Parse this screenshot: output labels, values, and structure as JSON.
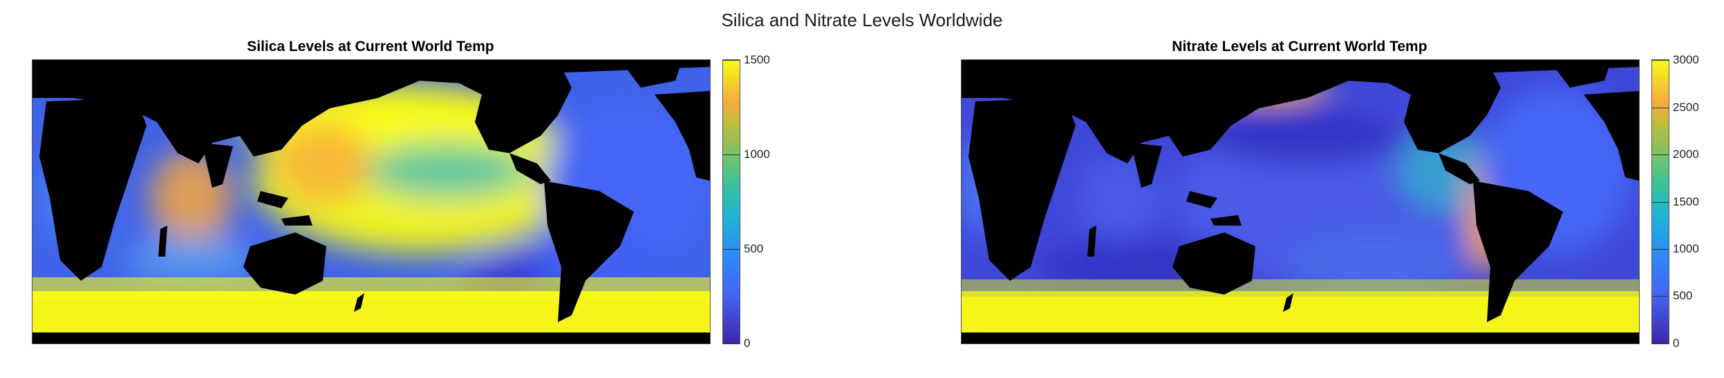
{
  "figure": {
    "title": "Silica and Nitrate Levels Worldwide"
  },
  "panels": [
    {
      "id": "silica",
      "title": "Silica Levels at Current World Temp",
      "colorbar": {
        "min": 0,
        "max": 1500,
        "ticks": [
          "0",
          "500",
          "1000",
          "1500"
        ],
        "tick_values": [
          0,
          500,
          1000,
          1500
        ]
      },
      "colormap": "parula"
    },
    {
      "id": "nitrate",
      "title": "Nitrate Levels at Current World Temp",
      "colorbar": {
        "min": 0,
        "max": 3000,
        "ticks": [
          "0",
          "500",
          "1000",
          "1500",
          "2000",
          "2500",
          "3000"
        ],
        "tick_values": [
          0,
          500,
          1000,
          1500,
          2000,
          2500,
          3000
        ]
      },
      "colormap": "parula"
    }
  ],
  "colors": {
    "land": "#000000",
    "parula_low": "#3e26a8",
    "parula_blue": "#4566f6",
    "parula_cyan": "#1fb3d6",
    "parula_green": "#6fc46e",
    "parula_orange": "#f9a93f",
    "parula_high": "#f9fb15"
  }
}
